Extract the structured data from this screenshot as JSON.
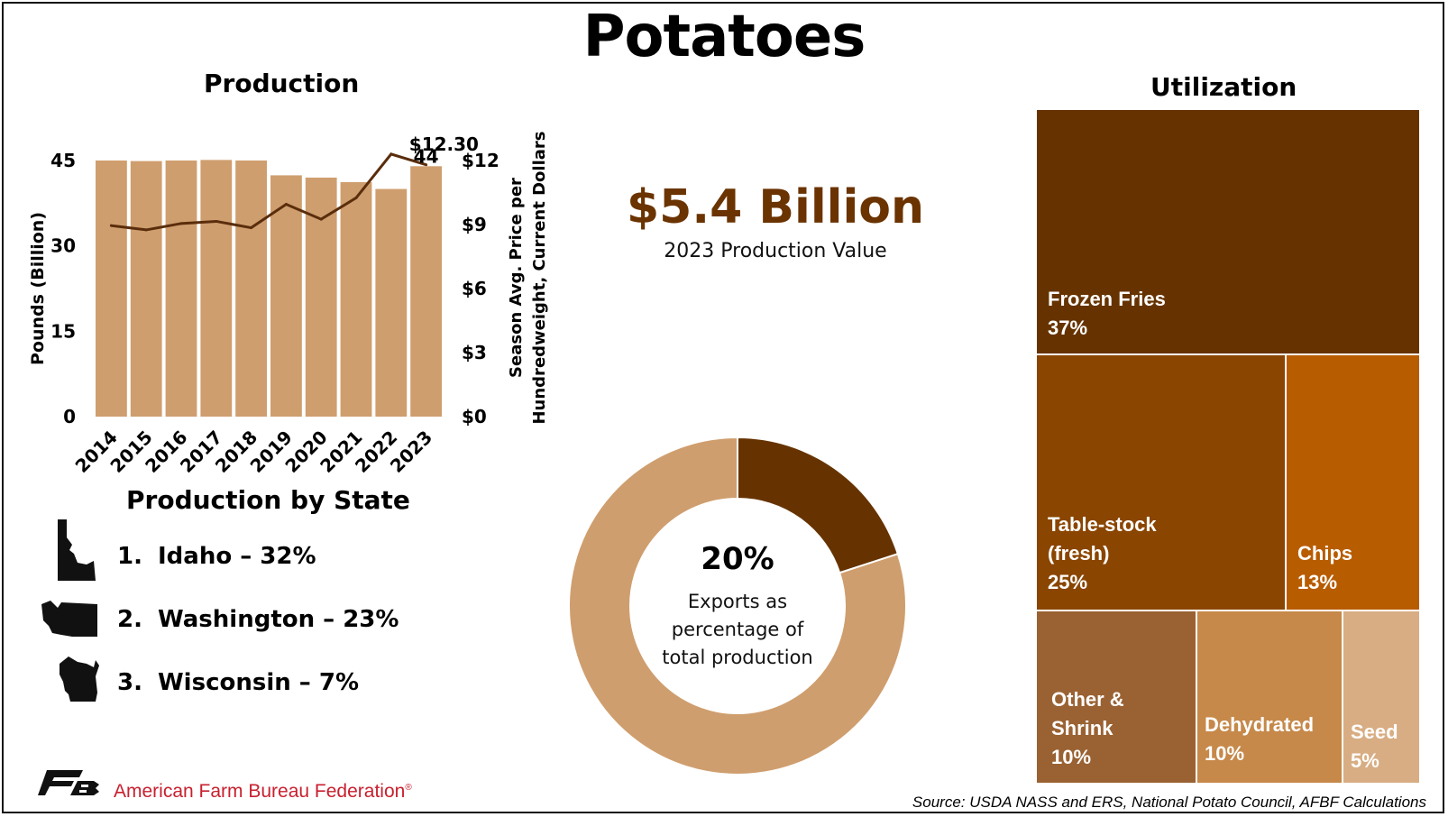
{
  "title": "Potatoes",
  "production": {
    "title": "Production",
    "y_left_label": "Pounds (Billion)",
    "y_right_label_line1": "Season Avg. Price per",
    "y_right_label_line2": "Hundredweight, Current Dollars",
    "last_bar_label": "44",
    "peak_price_label": "$12.30"
  },
  "state_section": {
    "title": "Production by State",
    "items": [
      {
        "num": "1.",
        "text": "Idaho – 32%"
      },
      {
        "num": "2.",
        "text": "Washington – 23%"
      },
      {
        "num": "3.",
        "text": "Wisconsin – 7%"
      }
    ]
  },
  "value": {
    "amount": "$5.4 Billion",
    "caption": "2023 Production Value"
  },
  "exports": {
    "pct": "20%",
    "line1": "Exports as",
    "line2": "percentage of",
    "line3": "total production"
  },
  "utilization": {
    "title": "Utilization",
    "items": [
      {
        "name_line1": "Frozen Fries",
        "name_line2": "",
        "pct": "37%",
        "color": "#663300"
      },
      {
        "name_line1": "Table-stock",
        "name_line2": "(fresh)",
        "pct": "25%",
        "color": "#8a4500"
      },
      {
        "name_line1": "Chips",
        "name_line2": "",
        "pct": "13%",
        "color": "#b85c00"
      },
      {
        "name_line1": "Other &",
        "name_line2": "Shrink",
        "pct": "10%",
        "color": "#9a6233"
      },
      {
        "name_line1": "Dehydrated",
        "name_line2": "",
        "pct": "10%",
        "color": "#c6894a"
      },
      {
        "name_line1": "Seed",
        "name_line2": "",
        "pct": "5%",
        "color": "#d8ad83"
      }
    ]
  },
  "footer": {
    "org": "American Farm Bureau Federation",
    "registered": "®",
    "source": "Source: USDA NASS and ERS, National Potato Council, AFBF Calculations"
  },
  "colors": {
    "bar": "#cf9e6e",
    "line": "#5a2d0c",
    "accent": "#6a3300",
    "donut_main": "#cf9e6e",
    "donut_export": "#663300",
    "logo": "#c8202f"
  },
  "chart_data": [
    {
      "type": "bar",
      "title": "Production",
      "categories": [
        "2014",
        "2015",
        "2016",
        "2017",
        "2018",
        "2019",
        "2020",
        "2021",
        "2022",
        "2023"
      ],
      "series": [
        {
          "name": "Pounds (Billion)",
          "values": [
            45.0,
            44.9,
            45.0,
            45.1,
            45.0,
            42.4,
            42.0,
            41.2,
            40.0,
            44.0
          ]
        },
        {
          "name": "Season Avg. Price per Hundredweight, Current Dollars",
          "type": "line",
          "axis": "right",
          "values": [
            8.95,
            8.75,
            9.05,
            9.15,
            8.85,
            9.95,
            9.25,
            10.25,
            12.3,
            11.8
          ]
        }
      ],
      "ylabel": "Pounds (Billion)",
      "ylim": [
        0,
        45
      ],
      "yticks": [
        0,
        15,
        30,
        45
      ],
      "ylabel_right": "Season Avg. Price per Hundredweight, Current Dollars",
      "ylim_right": [
        0,
        12
      ],
      "yticks_right": [
        "$0",
        "$3",
        "$6",
        "$9",
        "$12"
      ],
      "data_labels": [
        "44",
        "$12.30"
      ],
      "grid": false
    },
    {
      "type": "pie",
      "title": "",
      "labels": [
        "Exports",
        "Other"
      ],
      "values": [
        20,
        80
      ],
      "center_text": "20% Exports as percentage of total production"
    },
    {
      "type": "treemap",
      "title": "Utilization",
      "labels": [
        "Frozen Fries",
        "Table-stock (fresh)",
        "Chips",
        "Other & Shrink",
        "Dehydrated",
        "Seed"
      ],
      "values": [
        37,
        25,
        13,
        10,
        10,
        5
      ]
    }
  ]
}
